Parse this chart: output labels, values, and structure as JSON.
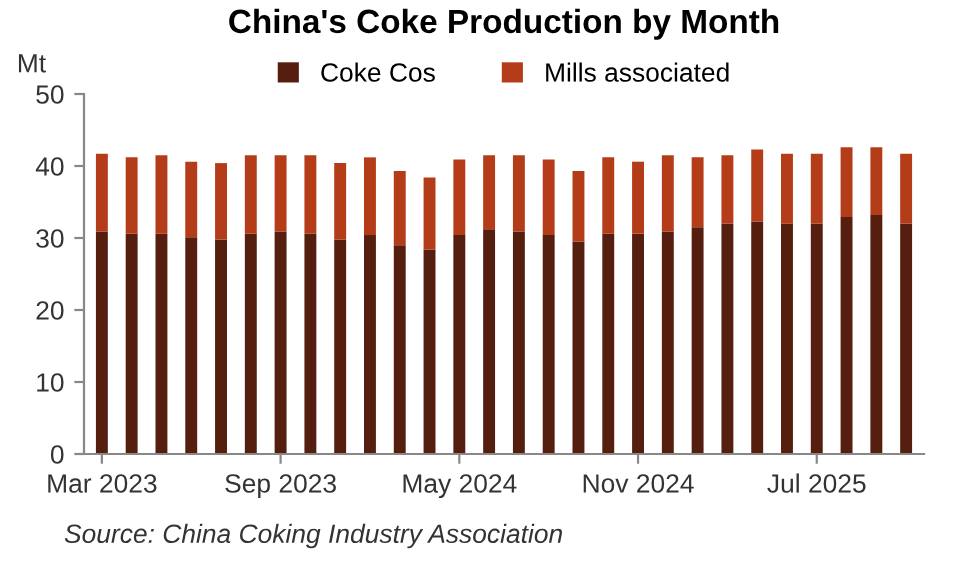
{
  "chart_data": {
    "type": "bar",
    "title": "China's Coke Production by Month",
    "ylabel": "Mt",
    "stacked": true,
    "legend": "top",
    "grid": false,
    "categories": [
      "Mar 2023",
      null,
      null,
      null,
      null,
      null,
      "Sep 2023",
      null,
      null,
      null,
      null,
      null,
      "May 2024",
      null,
      null,
      null,
      null,
      null,
      "Nov 2024",
      null,
      null,
      null,
      null,
      null,
      "Jul 2025",
      null,
      null,
      null
    ],
    "series": [
      {
        "name": "Coke Cos",
        "color": "#561e0e",
        "values": [
          30.9,
          30.6,
          30.6,
          30.1,
          29.8,
          30.6,
          30.9,
          30.6,
          29.8,
          30.4,
          29.0,
          28.4,
          30.4,
          31.2,
          30.9,
          30.4,
          29.5,
          30.6,
          30.6,
          30.9,
          31.5,
          32.0,
          32.3,
          32.0,
          32.0,
          32.9,
          33.2,
          32.0
        ]
      },
      {
        "name": "Mills associated",
        "color": "#b43c19",
        "values": [
          10.8,
          10.6,
          10.9,
          10.5,
          10.6,
          10.9,
          10.6,
          10.9,
          10.6,
          10.8,
          10.3,
          10.0,
          10.5,
          10.3,
          10.6,
          10.5,
          9.8,
          10.6,
          10.0,
          10.6,
          9.7,
          9.5,
          10.0,
          9.7,
          9.7,
          9.7,
          9.4,
          9.7
        ]
      }
    ],
    "ylim": [
      0,
      50
    ],
    "yticks": [
      0,
      10,
      20,
      30,
      40,
      50
    ],
    "annotations": [
      "Source: China Coking Industry Association"
    ]
  }
}
